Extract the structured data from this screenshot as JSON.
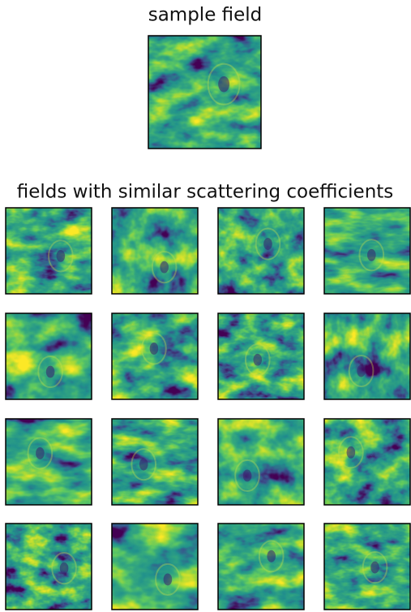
{
  "title": "sample field",
  "subtitle": "fields with similar scattering coefficients"
}
